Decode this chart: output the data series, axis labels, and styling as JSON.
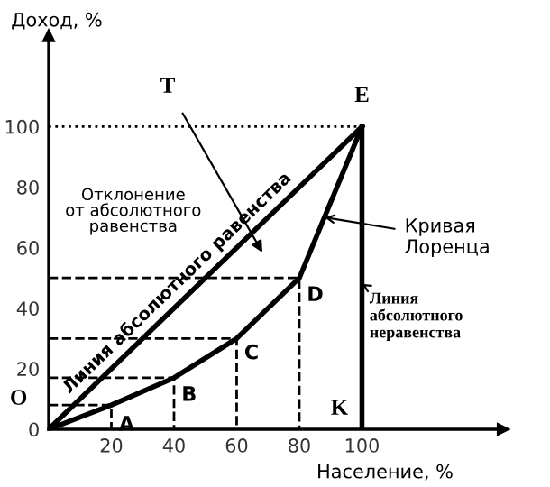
{
  "chart_data": {
    "type": "line",
    "xlabel": "Население, %",
    "ylabel": "Доход, %",
    "xlim": [
      0,
      145
    ],
    "ylim": [
      0,
      130
    ],
    "xticks": [
      20,
      40,
      60,
      80,
      100
    ],
    "yticks": [
      0,
      20,
      40,
      60,
      80,
      100
    ],
    "grid": false,
    "legend": false,
    "marker": "none",
    "series": [
      {
        "color": "#000000",
        "line_style": "solid",
        "x": [
          0,
          100
        ],
        "values": [
          0,
          100
        ]
      },
      {
        "color": "#000000",
        "line_style": "solid",
        "x": [
          0,
          20,
          40,
          60,
          80,
          100
        ],
        "values": [
          0,
          8,
          17,
          30,
          50,
          100
        ]
      },
      {
        "color": "#000000",
        "line_style": "solid",
        "x": [
          100,
          100
        ],
        "values": [
          0,
          100
        ]
      },
      {
        "color": "#000000",
        "line_style": "dotted",
        "x": [
          0,
          100
        ],
        "values": [
          100,
          100
        ]
      },
      {
        "color": "#000000",
        "line_style": "dashed",
        "x": [
          0,
          20,
          20
        ],
        "values": [
          8,
          8,
          0
        ]
      },
      {
        "color": "#000000",
        "line_style": "dashed",
        "x": [
          0,
          40,
          40
        ],
        "values": [
          17,
          17,
          0
        ]
      },
      {
        "color": "#000000",
        "line_style": "dashed",
        "x": [
          0,
          60,
          60
        ],
        "values": [
          30,
          30,
          0
        ]
      },
      {
        "color": "#000000",
        "line_style": "dashed",
        "x": [
          0,
          80,
          80
        ],
        "values": [
          50,
          50,
          0
        ]
      }
    ],
    "annotations": [
      {
        "text": "A",
        "x": 20,
        "y": 8
      },
      {
        "text": "B",
        "x": 40,
        "y": 17
      },
      {
        "text": "C",
        "x": 60,
        "y": 30
      },
      {
        "text": "D",
        "x": 80,
        "y": 50
      },
      {
        "text": "E",
        "x": 100,
        "y": 100
      },
      {
        "text": "O",
        "x": 0,
        "y": 0
      },
      {
        "text": "K",
        "x": 100,
        "y": 0
      },
      "T",
      "Отклонение\nот абсолютного\nравенства",
      {
        "text": "Линия абсолютного равенства",
        "x": 45,
        "y": 45
      },
      {
        "text": "Кривая\nЛоренца",
        "x": 88,
        "y": 70
      },
      {
        "text": "Линия\nабсолютного\nнеравенства",
        "x": 100,
        "y": 48
      }
    ]
  }
}
